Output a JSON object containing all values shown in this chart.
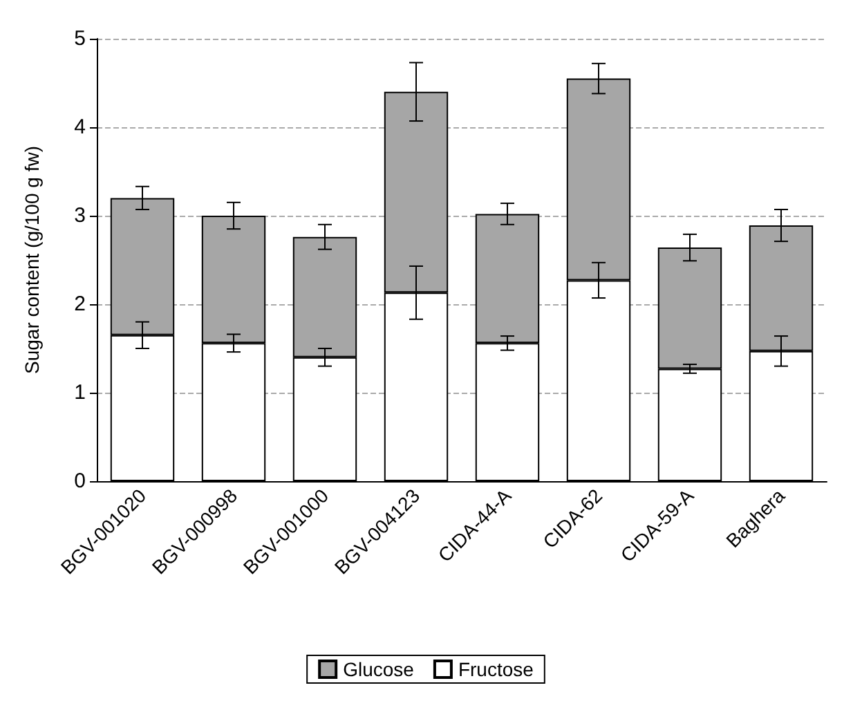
{
  "chart_data": {
    "type": "bar",
    "ylabel": "Sugar content (g/100 g fw)",
    "categories": [
      "BGV-001020",
      "BGV-000998",
      "BGV-001000",
      "BGV-004123",
      "CIDA-44-A",
      "CIDA-62",
      "CIDA-59-A",
      "Baghera"
    ],
    "stacked": true,
    "series": [
      {
        "name": "Fructose",
        "color": "#ffffff",
        "values": [
          1.65,
          1.56,
          1.4,
          2.13,
          1.56,
          2.27,
          1.27,
          1.47
        ],
        "errors": [
          0.15,
          0.1,
          0.1,
          0.3,
          0.08,
          0.2,
          0.05,
          0.17
        ]
      },
      {
        "name": "Glucose",
        "color": "#a6a6a6",
        "values": [
          1.55,
          1.44,
          1.36,
          2.27,
          1.46,
          2.28,
          1.37,
          1.42
        ],
        "errors": [
          0.13,
          0.15,
          0.14,
          0.33,
          0.12,
          0.17,
          0.15,
          0.18
        ]
      }
    ],
    "ylim": [
      0,
      5
    ],
    "yticks": [
      0,
      1,
      2,
      3,
      4,
      5
    ],
    "grid": "y",
    "legend": "bottom"
  }
}
